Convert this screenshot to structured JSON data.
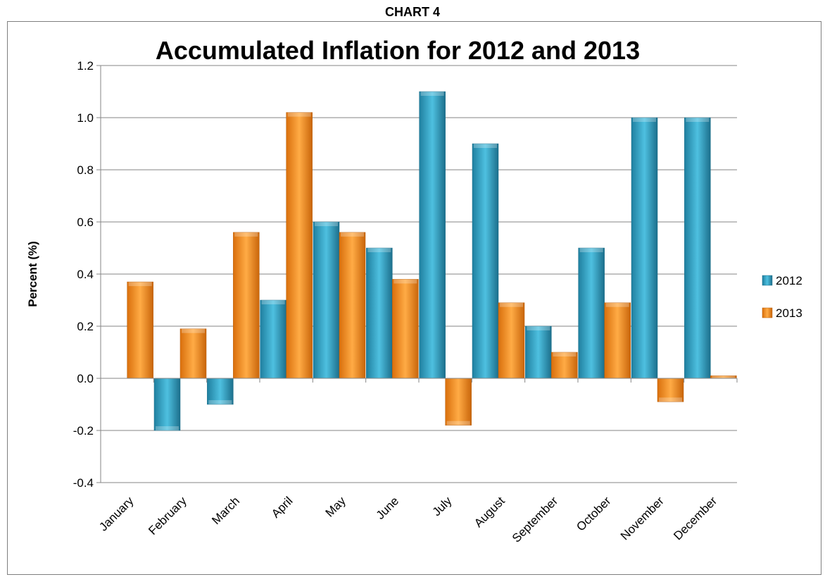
{
  "header_label": "CHART 4",
  "chart_data": {
    "type": "bar",
    "title": "Accumulated Inflation for 2012 and 2013",
    "xlabel": "",
    "ylabel": "Percent (%)",
    "ylim": [
      -0.4,
      1.2
    ],
    "yticks": [
      "1.2",
      "1.0",
      "0.8",
      "0.6",
      "0.4",
      "0.2",
      "0.0",
      "-0.2",
      "-0.4"
    ],
    "grid": true,
    "legend_position": "right",
    "categories": [
      "January",
      "February",
      "March",
      "April",
      "May",
      "June",
      "July",
      "August",
      "September",
      "October",
      "November",
      "December"
    ],
    "series": [
      {
        "name": "2012",
        "color": "#2e9cbf",
        "values": [
          0.0,
          -0.2,
          -0.1,
          0.3,
          0.6,
          0.5,
          1.1,
          0.9,
          0.2,
          0.5,
          1.0,
          1.0
        ]
      },
      {
        "name": "2013",
        "color": "#f28a1c",
        "values": [
          0.37,
          0.19,
          0.56,
          1.02,
          0.56,
          0.38,
          -0.18,
          0.29,
          0.1,
          0.29,
          -0.09,
          0.01
        ]
      }
    ]
  }
}
